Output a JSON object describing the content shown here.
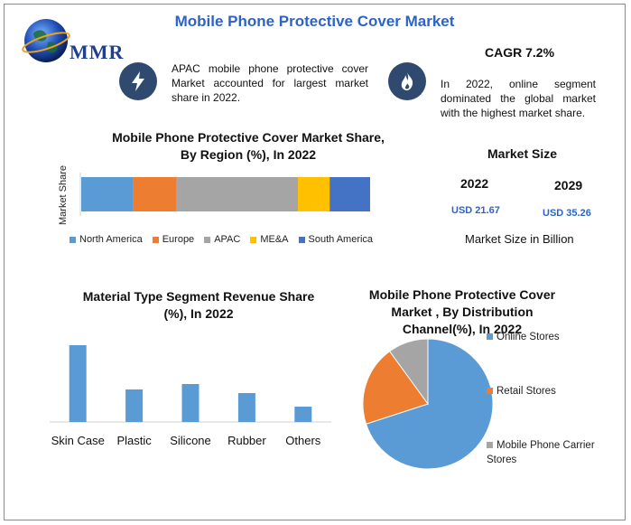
{
  "title": "Mobile Phone Protective Cover Market",
  "logo": {
    "text": "MMR",
    "icon": "globe-icon"
  },
  "highlights": [
    {
      "icon": "lightning-icon",
      "text": "APAC mobile phone protective cover Market accounted for largest market share in 2022."
    },
    {
      "icon": "flame-icon",
      "text": "In 2022, online segment dominated the global market with the highest market share."
    }
  ],
  "cagr": "CAGR 7.2%",
  "market_size": {
    "title": "Market Size",
    "years": [
      "2022",
      "2029"
    ],
    "values": [
      "USD 21.67",
      "USD 35.26"
    ],
    "note": "Market Size in Billion"
  },
  "colors": {
    "title_blue": "#2d63c8",
    "bar_blue": "#5b9bd5",
    "orange": "#ed7d31",
    "gray": "#a5a5a5",
    "yellow": "#ffc000",
    "dark_blue": "#4472c4",
    "icon_bg": "#2f4a6e"
  },
  "chart_data": [
    {
      "type": "bar",
      "orientation": "horizontal-stacked",
      "title": "Mobile Phone Protective Cover Market Share, By Region (%), In 2022",
      "ylabel": "Market Share",
      "categories": [
        "Market Share"
      ],
      "series": [
        {
          "name": "North America",
          "values": [
            18
          ],
          "color": "#5b9bd5"
        },
        {
          "name": "Europe",
          "values": [
            15
          ],
          "color": "#ed7d31"
        },
        {
          "name": "APAC",
          "values": [
            42
          ],
          "color": "#a5a5a5"
        },
        {
          "name": "ME&A",
          "values": [
            11
          ],
          "color": "#ffc000"
        },
        {
          "name": "South America",
          "values": [
            14
          ],
          "color": "#4472c4"
        }
      ],
      "xlim": [
        0,
        100
      ],
      "legend": "bottom"
    },
    {
      "type": "bar",
      "title": "Material Type Segment Revenue Share (%), In 2022",
      "categories": [
        "Skin Case",
        "Plastic",
        "Silicone",
        "Rubber",
        "Others"
      ],
      "values": [
        85,
        36,
        42,
        32,
        17
      ],
      "ylim": [
        0,
        100
      ],
      "color": "#5b9bd5"
    },
    {
      "type": "pie",
      "title": "Mobile Phone Protective Cover Market , By Distribution Channel(%), In 2022",
      "labels": [
        "Online Stores",
        "Retail Stores",
        "Mobile Phone Carrier Stores"
      ],
      "values": [
        70,
        20,
        10
      ],
      "colors": [
        "#5b9bd5",
        "#ed7d31",
        "#a5a5a5"
      ],
      "legend": "right"
    }
  ]
}
